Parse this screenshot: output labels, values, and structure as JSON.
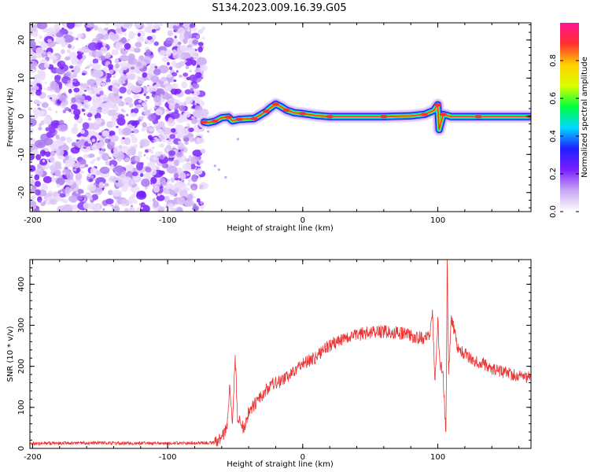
{
  "title": "S134.2023.009.16.39.G05",
  "chart_data": [
    {
      "type": "heatmap",
      "name": "spectrogram",
      "xlabel": "Height of straight line (km)",
      "ylabel": "Frequency (Hz)",
      "xlim": [
        -202,
        169
      ],
      "ylim": [
        -25,
        24.5
      ],
      "xticks": [
        -200,
        -100,
        0,
        100
      ],
      "yticks": [
        -20,
        -10,
        0,
        10,
        20
      ],
      "noise_region": {
        "x_start": -202,
        "x_end": -73
      },
      "trace": [
        {
          "x": -73,
          "y": -1.5
        },
        {
          "x": -70,
          "y": -1.7
        },
        {
          "x": -65,
          "y": -1.3
        },
        {
          "x": -60,
          "y": -0.4
        },
        {
          "x": -55,
          "y": -0.2
        },
        {
          "x": -52,
          "y": -1.2
        },
        {
          "x": -47,
          "y": -0.8
        },
        {
          "x": -42,
          "y": -0.7
        },
        {
          "x": -36,
          "y": -0.6
        },
        {
          "x": -32,
          "y": 0.2
        },
        {
          "x": -27,
          "y": 1.3
        },
        {
          "x": -24,
          "y": 2.2
        },
        {
          "x": -20,
          "y": 3.2
        },
        {
          "x": -16,
          "y": 2.5
        },
        {
          "x": -12,
          "y": 1.6
        },
        {
          "x": -6,
          "y": 0.9
        },
        {
          "x": 0,
          "y": 0.7
        },
        {
          "x": 10,
          "y": 0.2
        },
        {
          "x": 20,
          "y": -0.1
        },
        {
          "x": 40,
          "y": -0.1
        },
        {
          "x": 60,
          "y": -0.1
        },
        {
          "x": 80,
          "y": 0.1
        },
        {
          "x": 90,
          "y": 0.5
        },
        {
          "x": 97,
          "y": 1.5
        },
        {
          "x": 100,
          "y": 3.0
        },
        {
          "x": 101,
          "y": -3.5
        },
        {
          "x": 104,
          "y": 0.5
        },
        {
          "x": 110,
          "y": -0.1
        },
        {
          "x": 130,
          "y": -0.1
        },
        {
          "x": 150,
          "y": -0.1
        },
        {
          "x": 169,
          "y": -0.1
        }
      ],
      "tone_band": {
        "x_start": 105,
        "x_end": 169,
        "y_low": -0.7,
        "y_high": 0.7
      },
      "colorbar": {
        "label": "Normalized spectral amplitude",
        "range": [
          0,
          1
        ],
        "ticks": [
          "0.0",
          "0.2",
          "0.4",
          "0.6",
          "0.8"
        ],
        "tick_values": [
          0,
          0.2,
          0.4,
          0.6,
          0.8
        ],
        "colors": [
          "#ffffff",
          "#c9a8f3",
          "#7a1fff",
          "#1f1fff",
          "#00d8ff",
          "#00ff40",
          "#dcff00",
          "#ffd000",
          "#ff3030",
          "#ff1493"
        ]
      }
    },
    {
      "type": "line",
      "name": "snr",
      "xlabel": "Height of straight line (km)",
      "ylabel": "SNR (10 * v/v)",
      "xlim": [
        -202,
        169
      ],
      "ylim": [
        0,
        460
      ],
      "xticks": [
        -200,
        -100,
        0,
        100
      ],
      "yticks": [
        0,
        100,
        200,
        300,
        400
      ],
      "color": "#ee3333",
      "x": [
        -202,
        -150,
        -100,
        -65,
        -60,
        -58,
        -56,
        -54,
        -52,
        -50,
        -48,
        -46,
        -44,
        -42,
        -40,
        -35,
        -30,
        -25,
        -20,
        -15,
        -10,
        -5,
        0,
        5,
        10,
        15,
        20,
        25,
        30,
        35,
        40,
        45,
        50,
        55,
        60,
        65,
        70,
        75,
        80,
        85,
        90,
        94,
        96,
        98,
        100,
        101,
        102,
        104,
        105,
        106,
        107,
        108,
        110,
        115,
        120,
        125,
        130,
        135,
        140,
        145,
        150,
        155,
        160,
        165,
        169
      ],
      "values": [
        12,
        13,
        12,
        14,
        25,
        40,
        60,
        150,
        70,
        225,
        55,
        75,
        45,
        65,
        90,
        110,
        130,
        150,
        160,
        165,
        180,
        190,
        205,
        215,
        220,
        240,
        250,
        260,
        265,
        270,
        275,
        280,
        282,
        285,
        285,
        283,
        282,
        280,
        275,
        270,
        268,
        280,
        330,
        160,
        310,
        240,
        200,
        180,
        95,
        45,
        460,
        180,
        320,
        240,
        230,
        220,
        210,
        205,
        195,
        190,
        185,
        180,
        178,
        176,
        172
      ],
      "noise": {
        "min_x": -65,
        "amplitude": 16
      }
    }
  ]
}
